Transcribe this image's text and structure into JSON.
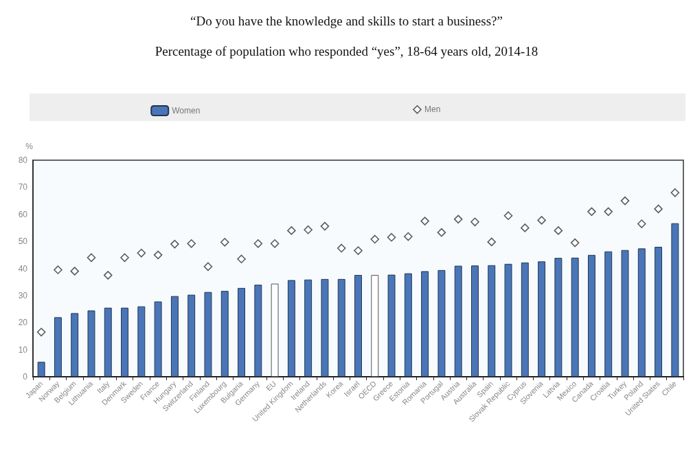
{
  "chart_data": {
    "type": "bar",
    "title": "“Do you have the knowledge and skills to start a business?”",
    "subtitle": "Percentage of population who responded “yes”, 18-64 years old, 2014-18",
    "ylabel": "%",
    "categories": [
      "Japan",
      "Norway",
      "Belgium",
      "Lithuania",
      "Italy",
      "Denmark",
      "Sweden",
      "France",
      "Hungary",
      "Switzerland",
      "Finland",
      "Luxembourg",
      "Bulgaria",
      "Germany",
      "EU",
      "United Kingdom",
      "Ireland",
      "Netherlands",
      "Korea",
      "Israel",
      "OECD",
      "Greece",
      "Estonia",
      "Romania",
      "Portugal",
      "Austria",
      "Australia",
      "Spain",
      "Slovak Republic",
      "Cyprus",
      "Slovenia",
      "Latvia",
      "Mexico",
      "Canada",
      "Croatia",
      "Turkey",
      "Poland",
      "United States",
      "Chile"
    ],
    "series": [
      {
        "name": "Women",
        "color": "#4a76b8",
        "colors": [
          "#4a76b8",
          "#4a76b8",
          "#4a76b8",
          "#4a76b8",
          "#4a76b8",
          "#4a76b8",
          "#4a76b8",
          "#4a76b8",
          "#4a76b8",
          "#4a76b8",
          "#4a76b8",
          "#4a76b8",
          "#4a76b8",
          "#4a76b8",
          "#ffffff",
          "#4a76b8",
          "#4a76b8",
          "#4a76b8",
          "#4a76b8",
          "#4a76b8",
          "#ffffff",
          "#4a76b8",
          "#4a76b8",
          "#4a76b8",
          "#4a76b8",
          "#4a76b8",
          "#4a76b8",
          "#4a76b8",
          "#4a76b8",
          "#4a76b8",
          "#4a76b8",
          "#4a76b8",
          "#4a76b8",
          "#4a76b8",
          "#4a76b8",
          "#4a76b8",
          "#4a76b8",
          "#4a76b8",
          "#4a76b8"
        ],
        "values": [
          5.5,
          22,
          23.5,
          24.5,
          25.5,
          25.5,
          26,
          27.8,
          29.8,
          30.3,
          31.3,
          31.7,
          32.8,
          34,
          34.4,
          35.7,
          35.9,
          36.1,
          36.1,
          37.6,
          37.6,
          37.7,
          38.2,
          39,
          39.4,
          41,
          41.1,
          41.2,
          41.7,
          42.2,
          42.6,
          43.9,
          44,
          45,
          46.3,
          46.8,
          47.4,
          48,
          56.7
        ]
      },
      {
        "name": "Men",
        "type": "scatter",
        "marker": "diamond",
        "color": "#333333",
        "values": [
          16.5,
          39.5,
          39,
          44,
          37.5,
          44,
          45.7,
          45,
          49,
          49.2,
          40.7,
          49.7,
          43.5,
          49.2,
          49.2,
          54,
          54.3,
          55.6,
          47.5,
          46.6,
          50.8,
          51.5,
          51.8,
          57.5,
          53.3,
          58.2,
          57.2,
          49.8,
          59.5,
          55,
          57.8,
          54,
          49.5,
          61,
          61,
          65,
          56.5,
          62,
          68
        ]
      }
    ],
    "ylim": [
      0,
      80
    ],
    "yticks": [
      0,
      10,
      20,
      30,
      40,
      50,
      60,
      70,
      80
    ],
    "grid": false,
    "legend": "top"
  }
}
